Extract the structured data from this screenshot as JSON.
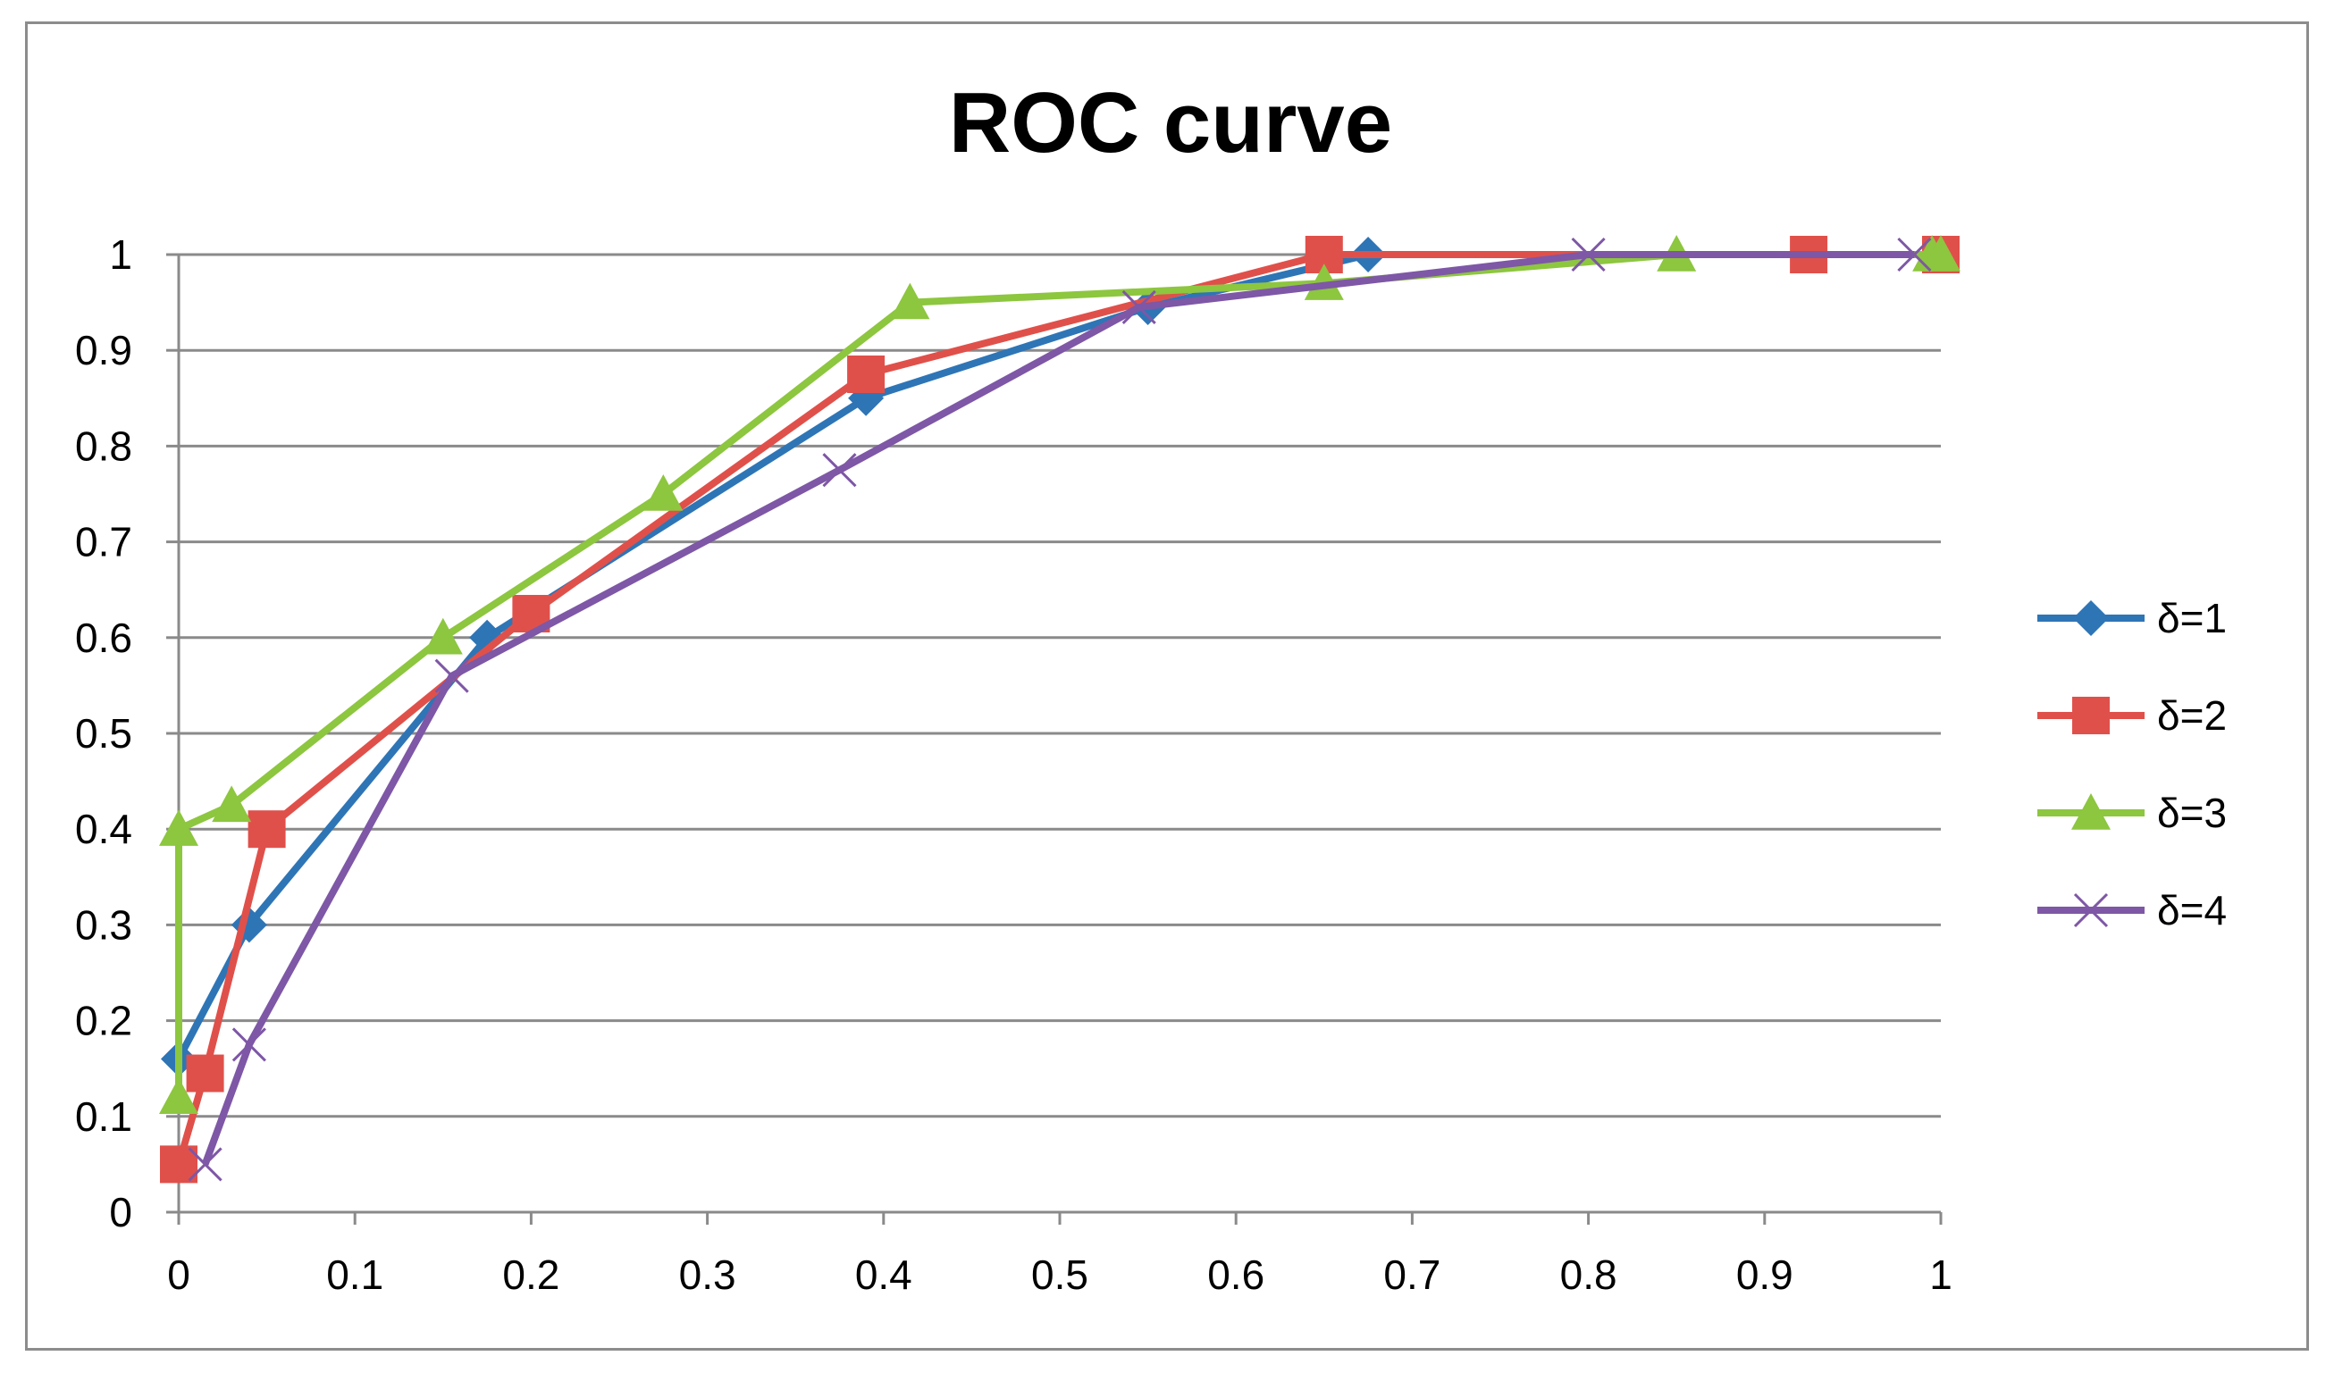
{
  "chart_data": {
    "type": "line",
    "title": "ROC curve",
    "xlabel": "",
    "ylabel": "",
    "xlim": [
      0,
      1
    ],
    "ylim": [
      0,
      1
    ],
    "xticks": [
      "0",
      "0.1",
      "0.2",
      "0.3",
      "0.4",
      "0.5",
      "0.6",
      "0.7",
      "0.8",
      "0.9",
      "1"
    ],
    "yticks": [
      "0",
      "0.1",
      "0.2",
      "0.3",
      "0.4",
      "0.5",
      "0.6",
      "0.7",
      "0.8",
      "0.9",
      "1"
    ],
    "grid": "horizontal",
    "legend_position": "right",
    "series": [
      {
        "name": "δ=1",
        "color": "#2e75b6",
        "marker": "diamond",
        "x": [
          0,
          0.04,
          0.175,
          0.39,
          0.55,
          0.675
        ],
        "y": [
          0.16,
          0.3,
          0.6,
          0.85,
          0.945,
          1.0
        ]
      },
      {
        "name": "δ=2",
        "color": "#e0504a",
        "marker": "square",
        "x": [
          0.0,
          0.015,
          0.05,
          0.2,
          0.39,
          0.65,
          0.925,
          1.0
        ],
        "y": [
          0.05,
          0.145,
          0.4,
          0.625,
          0.875,
          1.0,
          1.0,
          1.0
        ]
      },
      {
        "name": "δ=3",
        "color": "#8dc63f",
        "marker": "triangle",
        "x": [
          0.0,
          0.0,
          0.03,
          0.15,
          0.275,
          0.415,
          0.65,
          0.85,
          0.995,
          1.0
        ],
        "y": [
          0.12,
          0.4,
          0.425,
          0.6,
          0.75,
          0.95,
          0.97,
          1.0,
          1.0,
          1.0
        ]
      },
      {
        "name": "δ=4",
        "color": "#7e57a6",
        "marker": "x",
        "x": [
          0.015,
          0.04,
          0.155,
          0.375,
          0.545,
          0.8,
          0.985
        ],
        "y": [
          0.05,
          0.175,
          0.56,
          0.775,
          0.945,
          1.0,
          1.0
        ]
      }
    ]
  }
}
